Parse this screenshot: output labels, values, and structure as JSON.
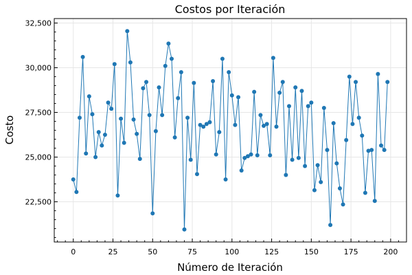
{
  "chart_data": {
    "type": "line",
    "title": "Costos por Iteración",
    "xlabel": "Número de Iteración",
    "ylabel": "Costo",
    "xlim": [
      -12,
      210
    ],
    "ylim": [
      20250,
      32750
    ],
    "xticks": [
      0,
      25,
      50,
      75,
      100,
      125,
      150,
      175,
      200
    ],
    "xtick_labels": [
      "0",
      "25",
      "50",
      "75",
      "100",
      "125",
      "150",
      "175",
      "200"
    ],
    "yticks": [
      22500,
      25000,
      27500,
      30000,
      32500
    ],
    "ytick_labels": [
      "22,500",
      "25,000",
      "27,500",
      "30,000",
      "32,500"
    ],
    "grid": true,
    "series": [
      {
        "color": "#1f77b4",
        "x": [
          0,
          2,
          4,
          6,
          8,
          10,
          12,
          14,
          16,
          18,
          20,
          22,
          24,
          26,
          28,
          30,
          32,
          34,
          36,
          38,
          40,
          42,
          44,
          46,
          48,
          50,
          52,
          54,
          56,
          58,
          60,
          62,
          64,
          66,
          68,
          70,
          72,
          74,
          76,
          78,
          80,
          82,
          84,
          86,
          88,
          90,
          92,
          94,
          96,
          98,
          100,
          102,
          104,
          106,
          108,
          110,
          112,
          114,
          116,
          118,
          120,
          122,
          124,
          126,
          128,
          130,
          132,
          134,
          136,
          138,
          140,
          142,
          144,
          146,
          148,
          150,
          152,
          154,
          156,
          158,
          160,
          162,
          164,
          166,
          168,
          170,
          172,
          174,
          176,
          178,
          180,
          182,
          184,
          186,
          188,
          190,
          192,
          194,
          196,
          198
        ],
        "y": [
          23750,
          23050,
          27200,
          30600,
          25200,
          28400,
          27400,
          25000,
          26400,
          25650,
          26250,
          28050,
          27700,
          30200,
          22850,
          27150,
          25800,
          32050,
          30300,
          27100,
          26300,
          24900,
          28850,
          29200,
          27350,
          21850,
          26450,
          28900,
          27350,
          30100,
          31350,
          30500,
          26100,
          28300,
          29750,
          20950,
          27200,
          24850,
          29150,
          24050,
          26800,
          26700,
          26850,
          26950,
          29250,
          25150,
          26400,
          30500,
          23750,
          29750,
          28450,
          26800,
          28350,
          24250,
          24950,
          25050,
          25150,
          28650,
          25100,
          27350,
          26750,
          26850,
          25100,
          30550,
          26700,
          28600,
          29200,
          24000,
          27850,
          24850,
          28900,
          24950,
          28700,
          24500,
          27850,
          28050,
          23150,
          24550,
          23600,
          27750,
          25400,
          21200,
          26900,
          24650,
          23250,
          22350,
          25950,
          29500,
          26850,
          29200,
          27200,
          26200,
          23000,
          25350,
          25400,
          22550,
          29650,
          25650,
          25400,
          29200
        ]
      }
    ]
  }
}
